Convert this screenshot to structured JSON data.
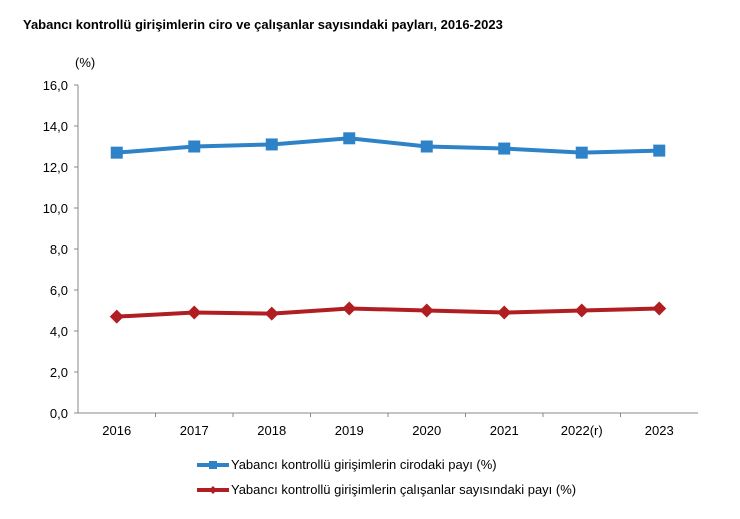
{
  "chart_data": {
    "type": "line",
    "title": "Yabancı kontrollü girişimlerin ciro ve çalışanlar sayısındaki payları, 2016-2023",
    "ylabel": "(%)",
    "categories": [
      "2016",
      "2017",
      "2018",
      "2019",
      "2020",
      "2021",
      "2022(r)",
      "2023"
    ],
    "ylim": [
      0,
      16
    ],
    "yticks": [
      "0,0",
      "2,0",
      "4,0",
      "6,0",
      "8,0",
      "10,0",
      "12,0",
      "14,0",
      "16,0"
    ],
    "grid": false,
    "legend_placement": "bottom",
    "series": [
      {
        "name": "Yabancı kontrollü girişimlerin cirodaki payı (%)",
        "color": "#2E83C8",
        "marker": "square",
        "values": [
          12.7,
          13.0,
          13.1,
          13.4,
          13.0,
          12.9,
          12.7,
          12.8
        ]
      },
      {
        "name": "Yabancı kontrollü girişimlerin çalışanlar sayısındaki payı (%)",
        "color": "#B01E22",
        "marker": "diamond",
        "values": [
          4.7,
          4.9,
          4.85,
          5.1,
          5.0,
          4.9,
          5.0,
          5.1
        ]
      }
    ]
  }
}
